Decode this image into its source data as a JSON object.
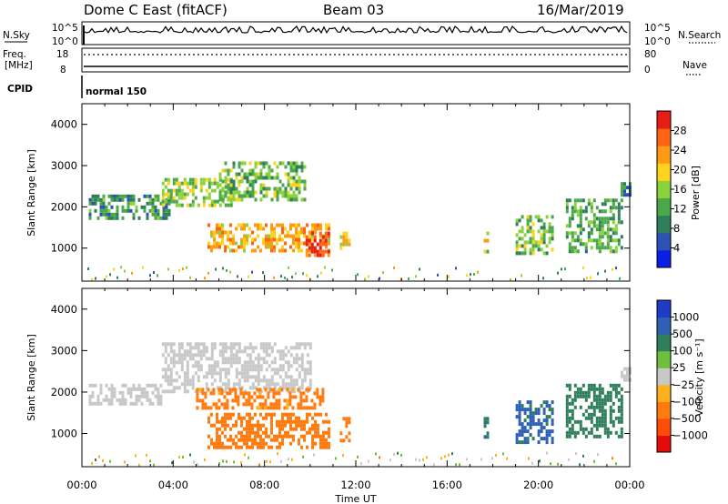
{
  "header": {
    "station": "Dome C East (fitACF)",
    "beam": "Beam 03",
    "date": "16/Mar/2019"
  },
  "top_panels": {
    "nsky_label": "N.Sky",
    "nsky_ticks": [
      "10^5",
      "10^0"
    ],
    "nsearch_label": "N.Search",
    "nsearch_ticks": [
      "10^5",
      "10^0"
    ],
    "freq_label_1": "Freq.",
    "freq_label_2": "[MHz]",
    "freq_ticks": [
      "18",
      "8"
    ],
    "nave_label": "Nave",
    "nave_ticks": [
      "80",
      "0"
    ],
    "cpid_label": "CPID",
    "cpid_value": "normal 150"
  },
  "colors": {
    "power_scale": [
      "#0a1ee6",
      "#2d52b4",
      "#2e7f5a",
      "#4aa84a",
      "#8cd23c",
      "#ffd21e",
      "#ff9a14",
      "#ff6414",
      "#e61e14"
    ],
    "velocity_scale": [
      "#e60a0a",
      "#ff4b0a",
      "#ff7a0f",
      "#ffb01e",
      "#c8c8c8",
      "#6cc03c",
      "#2e7f5a",
      "#2e60b4",
      "#1e3cc8"
    ]
  },
  "chart_data": [
    {
      "type": "heatmap",
      "name": "power",
      "ylabel": "Slant Range [km]",
      "xlabel": "Time UT",
      "x_ticks": [
        "00:00",
        "04:00",
        "08:00",
        "12:00",
        "16:00",
        "20:00",
        "00:00"
      ],
      "y_ticks": [
        1000,
        2000,
        3000,
        4000
      ],
      "ylim": [
        200,
        4500
      ],
      "xlim_hours": [
        0,
        24
      ],
      "colorbar": {
        "label": "Power [dB]",
        "ticks": [
          4,
          8,
          12,
          16,
          20,
          24,
          28
        ],
        "range": [
          0,
          32
        ]
      },
      "echo_regions": [
        {
          "t0": 0.3,
          "t1": 3.8,
          "r0": 1700,
          "r1": 2300,
          "value": 10
        },
        {
          "t0": 3.5,
          "t1": 6.5,
          "r0": 2000,
          "r1": 2700,
          "value": 16
        },
        {
          "t0": 6.0,
          "t1": 9.8,
          "r0": 2200,
          "r1": 3100,
          "value": 14
        },
        {
          "t0": 5.5,
          "t1": 10.8,
          "r0": 900,
          "r1": 1600,
          "value": 22
        },
        {
          "t0": 9.8,
          "t1": 10.8,
          "r0": 800,
          "r1": 1400,
          "value": 28
        },
        {
          "t0": 11.3,
          "t1": 11.7,
          "r0": 800,
          "r1": 1400,
          "value": 20
        },
        {
          "t0": 17.6,
          "t1": 17.8,
          "r0": 900,
          "r1": 1400,
          "value": 18
        },
        {
          "t0": 19.0,
          "t1": 20.6,
          "r0": 900,
          "r1": 1800,
          "value": 14
        },
        {
          "t0": 21.2,
          "t1": 23.6,
          "r0": 900,
          "r1": 2200,
          "value": 12
        },
        {
          "t0": 23.6,
          "t1": 24.0,
          "r0": 2300,
          "r1": 2600,
          "value": 8
        }
      ]
    },
    {
      "type": "heatmap",
      "name": "velocity",
      "ylabel": "Slant Range [km]",
      "xlabel": "Time UT",
      "x_ticks": [
        "00:00",
        "04:00",
        "08:00",
        "12:00",
        "16:00",
        "20:00",
        "00:00"
      ],
      "y_ticks": [
        1000,
        2000,
        3000,
        4000
      ],
      "ylim": [
        200,
        4500
      ],
      "xlim_hours": [
        0,
        24
      ],
      "colorbar": {
        "label": "Velocity [m s⁻¹]",
        "ticks": [
          "1000",
          "500",
          "100",
          "25",
          "−25",
          "−100",
          "−500",
          "−1000"
        ]
      },
      "echo_regions": [
        {
          "t0": 0.3,
          "t1": 3.5,
          "r0": 1700,
          "r1": 2200,
          "value": 0
        },
        {
          "t0": 3.5,
          "t1": 10.0,
          "r0": 2000,
          "r1": 3200,
          "value": 0
        },
        {
          "t0": 5.0,
          "t1": 10.6,
          "r0": 1600,
          "r1": 2100,
          "value": -150
        },
        {
          "t0": 5.5,
          "t1": 10.8,
          "r0": 700,
          "r1": 1500,
          "value": -300
        },
        {
          "t0": 11.3,
          "t1": 11.7,
          "r0": 800,
          "r1": 1400,
          "value": -300
        },
        {
          "t0": 17.6,
          "t1": 17.8,
          "r0": 900,
          "r1": 1400,
          "value": 600
        },
        {
          "t0": 19.0,
          "t1": 20.6,
          "r0": 800,
          "r1": 1800,
          "value": 700
        },
        {
          "t0": 21.2,
          "t1": 23.6,
          "r0": 900,
          "r1": 2200,
          "value": 200
        },
        {
          "t0": 23.6,
          "t1": 24.0,
          "r0": 2300,
          "r1": 2600,
          "value": 0
        }
      ]
    }
  ]
}
